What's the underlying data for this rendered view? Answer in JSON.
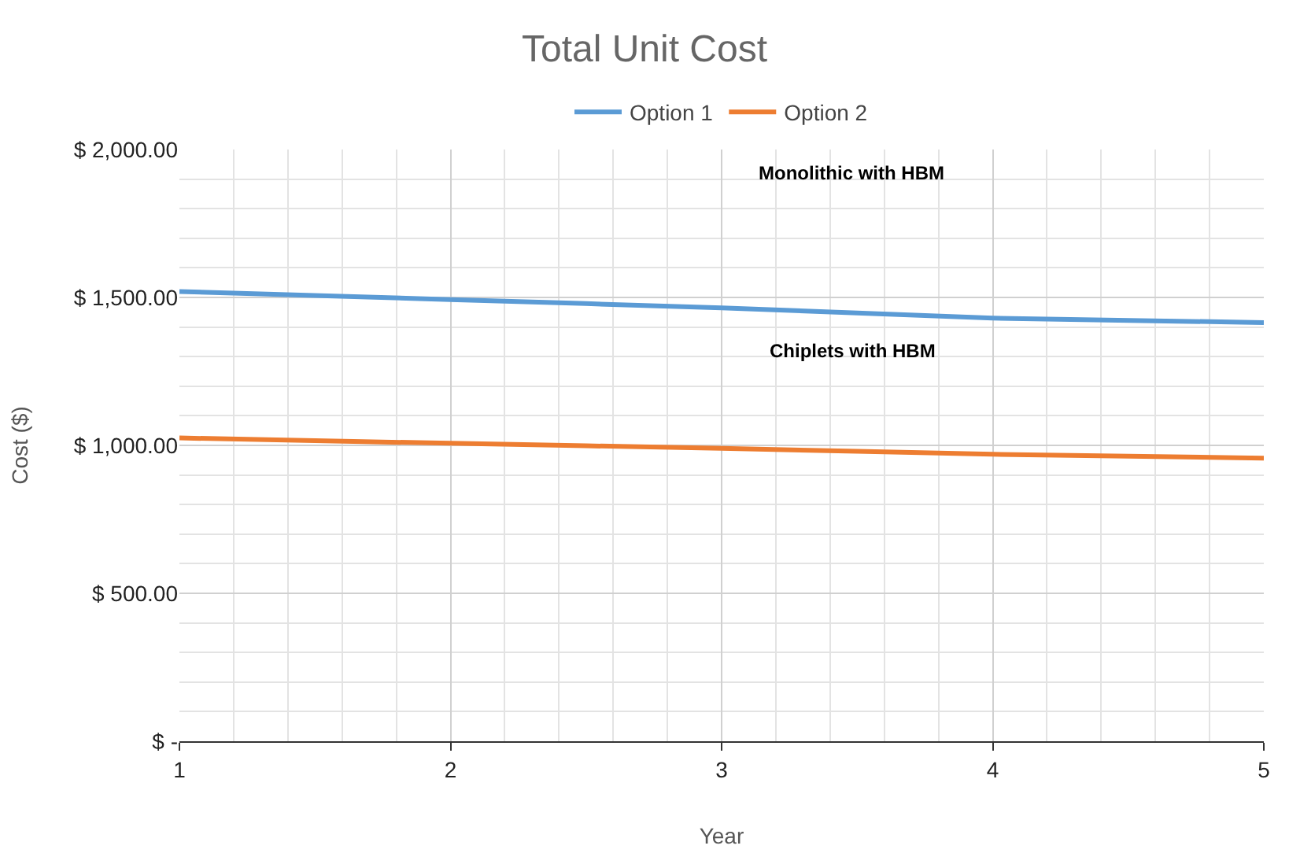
{
  "chart_data": {
    "type": "line",
    "title": "Total Unit Cost",
    "xlabel": "Year",
    "ylabel": "Cost ($)",
    "x": [
      1,
      2,
      3,
      4,
      5
    ],
    "series": [
      {
        "name": "Option 1",
        "color": "#5b9bd5",
        "values": [
          1520,
          1493,
          1465,
          1430,
          1415
        ]
      },
      {
        "name": "Option 2",
        "color": "#ed7d31",
        "values": [
          1025,
          1007,
          990,
          970,
          957
        ]
      }
    ],
    "xlim": [
      1,
      5
    ],
    "xticks": [
      1,
      2,
      3,
      4,
      5
    ],
    "ylim": [
      0,
      2000
    ],
    "yticks": [
      {
        "value": 0,
        "label": "$ -"
      },
      {
        "value": 500,
        "label": "$ 500.00"
      },
      {
        "value": 1000,
        "label": "$ 1,000.00"
      },
      {
        "value": 1500,
        "label": "$ 1,500.00"
      },
      {
        "value": 2000,
        "label": "$ 2,000.00"
      }
    ],
    "annotations": [
      "Monolithic with HBM",
      "Chiplets with HBM"
    ],
    "grid": true,
    "legend": "top",
    "marker": "none",
    "line_style": "solid"
  }
}
